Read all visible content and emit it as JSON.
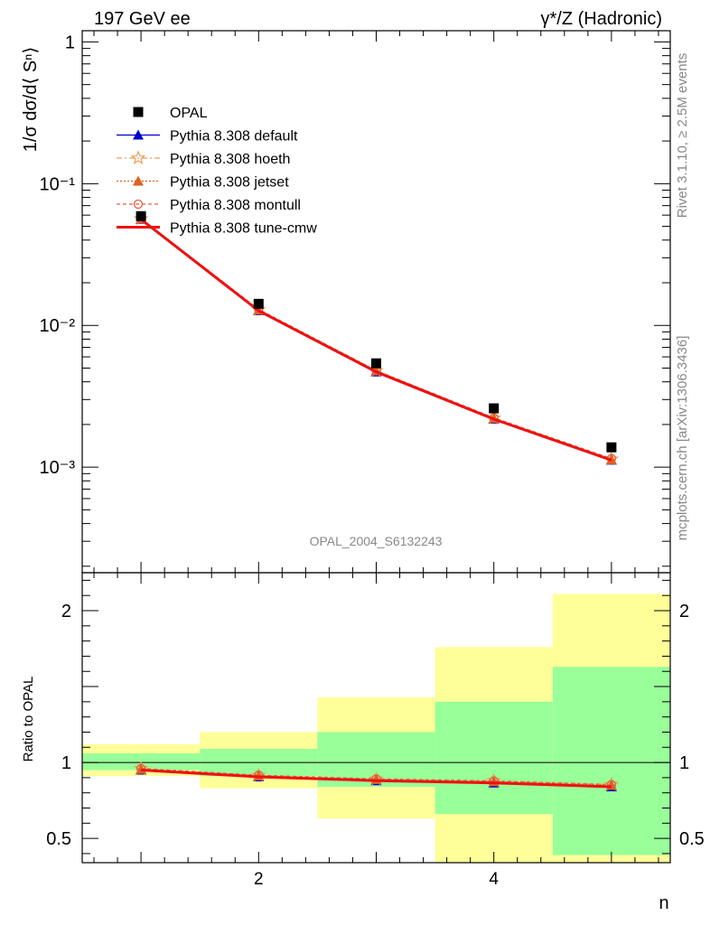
{
  "header": {
    "left_title": "197 GeV ee",
    "right_title": "γ*/Z (Hadronic)"
  },
  "side_labels": {
    "rivet": "Rivet 3.1.10, ≥ 2.5M events",
    "mcplots": "mcplots.cern.ch [arXiv:1306.3436]"
  },
  "watermark": "OPAL_2004_S6132243",
  "chart_data": [
    {
      "type": "line",
      "panel": "main",
      "yscale": "log",
      "ylabel": "1/σ dσ/d⟨ Sⁿ⟩",
      "xlabel": "n",
      "xlim": [
        0.5,
        5.5
      ],
      "ylim": [
        0.00018,
        1.2
      ],
      "y_ticks": [
        "10⁻³",
        "10⁻²",
        "10⁻¹",
        "1"
      ],
      "x": [
        1,
        2,
        3,
        4,
        5
      ],
      "series": [
        {
          "name": "OPAL",
          "marker": "square",
          "color": "#000000",
          "values": [
            0.059,
            0.0142,
            0.0054,
            0.0026,
            0.00138
          ]
        },
        {
          "name": "Pythia 8.308 default",
          "marker": "triangle",
          "color": "#0000cc",
          "values": [
            0.056,
            0.0127,
            0.0047,
            0.00218,
            0.00112
          ]
        },
        {
          "name": "Pythia 8.308 hoeth",
          "marker": "star",
          "color": "#e8a05a",
          "values": [
            0.0565,
            0.0129,
            0.0048,
            0.00222,
            0.00114
          ]
        },
        {
          "name": "Pythia 8.308 jetset",
          "marker": "triangle",
          "color": "#e06020",
          "values": [
            0.0563,
            0.0128,
            0.00478,
            0.0022,
            0.00113
          ]
        },
        {
          "name": "Pythia 8.308 montull",
          "marker": "circle",
          "color": "#e06040",
          "values": [
            0.0566,
            0.013,
            0.0048,
            0.00223,
            0.00115
          ]
        },
        {
          "name": "Pythia 8.308 tune-cmw",
          "marker": "line",
          "color": "#ee1111",
          "values": [
            0.056,
            0.0127,
            0.0047,
            0.00218,
            0.00112
          ]
        }
      ]
    },
    {
      "type": "line",
      "panel": "ratio",
      "ylabel": "Ratio to OPAL",
      "xlabel": "n",
      "xlim": [
        0.5,
        5.5
      ],
      "ylim": [
        0.34,
        2.25
      ],
      "y_ticks": [
        "0.5",
        "1",
        "2"
      ],
      "x_ticks": [
        "2",
        "4"
      ],
      "bands": [
        {
          "x_low": 0.5,
          "x_high": 1.5,
          "green": [
            0.95,
            1.06
          ],
          "yellow": [
            0.91,
            1.12
          ]
        },
        {
          "x_low": 1.5,
          "x_high": 2.5,
          "green": [
            0.91,
            1.09
          ],
          "yellow": [
            0.83,
            1.2
          ]
        },
        {
          "x_low": 2.5,
          "x_high": 3.5,
          "green": [
            0.84,
            1.2
          ],
          "yellow": [
            0.63,
            1.43
          ]
        },
        {
          "x_low": 3.5,
          "x_high": 4.5,
          "green": [
            0.66,
            1.4
          ],
          "yellow": [
            0.34,
            1.76
          ]
        },
        {
          "x_low": 4.5,
          "x_high": 5.5,
          "green": [
            0.39,
            1.63
          ],
          "yellow": [
            0.34,
            2.11
          ]
        }
      ],
      "x": [
        1,
        2,
        3,
        4,
        5
      ],
      "series": [
        {
          "name": "Pythia 8.308 default",
          "values": [
            0.95,
            0.905,
            0.88,
            0.865,
            0.84
          ]
        },
        {
          "name": "Pythia 8.308 hoeth",
          "values": [
            0.96,
            0.915,
            0.89,
            0.88,
            0.855
          ]
        },
        {
          "name": "Pythia 8.308 jetset",
          "values": [
            0.955,
            0.912,
            0.888,
            0.874,
            0.85
          ]
        },
        {
          "name": "Pythia 8.308 montull",
          "values": [
            0.96,
            0.916,
            0.892,
            0.878,
            0.854
          ]
        },
        {
          "name": "Pythia 8.308 tune-cmw",
          "values": [
            0.95,
            0.905,
            0.88,
            0.865,
            0.84
          ]
        }
      ]
    }
  ]
}
